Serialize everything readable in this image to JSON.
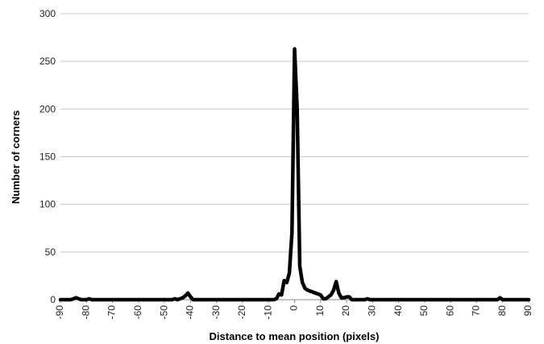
{
  "chart_data": {
    "type": "line",
    "title": "",
    "xlabel": "Distance to mean position (pixels)",
    "ylabel": "Number of corners",
    "xlim": [
      -90,
      90
    ],
    "ylim": [
      0,
      300
    ],
    "x_ticks": [
      -90,
      -80,
      -70,
      -60,
      -50,
      -40,
      -30,
      -20,
      -10,
      0,
      10,
      20,
      30,
      40,
      50,
      60,
      70,
      80,
      90
    ],
    "y_ticks": [
      0,
      50,
      100,
      150,
      200,
      250,
      300
    ],
    "grid": "horizontal",
    "series_color": "#000000",
    "series": [
      {
        "x": [
          -90,
          -86,
          -85,
          -84,
          -83,
          -82,
          -81,
          -80,
          -79,
          -78,
          -77,
          -60,
          -50,
          -47,
          -46,
          -45,
          -44,
          -43,
          -42,
          -41,
          -40,
          -39,
          -38,
          -30,
          -20,
          -10,
          -8,
          -7,
          -6,
          -5,
          -4,
          -3,
          -2,
          -1,
          0,
          1,
          2,
          3,
          4,
          5,
          6,
          7,
          8,
          9,
          10,
          11,
          12,
          13,
          14,
          15,
          16,
          17,
          18,
          19,
          20,
          21,
          22,
          25,
          27,
          28,
          29,
          30,
          40,
          50,
          60,
          70,
          78,
          79,
          80,
          81,
          90
        ],
        "y": [
          0,
          0,
          1,
          2,
          1,
          0,
          0,
          0,
          1,
          0,
          0,
          0,
          0,
          0,
          1,
          0,
          1,
          2,
          4,
          7,
          3,
          0,
          0,
          0,
          0,
          0,
          0,
          1,
          6,
          5,
          20,
          18,
          28,
          70,
          263,
          200,
          35,
          18,
          12,
          10,
          9,
          8,
          7,
          6,
          5,
          1,
          1,
          3,
          5,
          10,
          19,
          7,
          2,
          2,
          3,
          3,
          0,
          0,
          0,
          1,
          0,
          0,
          0,
          0,
          0,
          0,
          0,
          2,
          0,
          0,
          0
        ]
      }
    ]
  }
}
